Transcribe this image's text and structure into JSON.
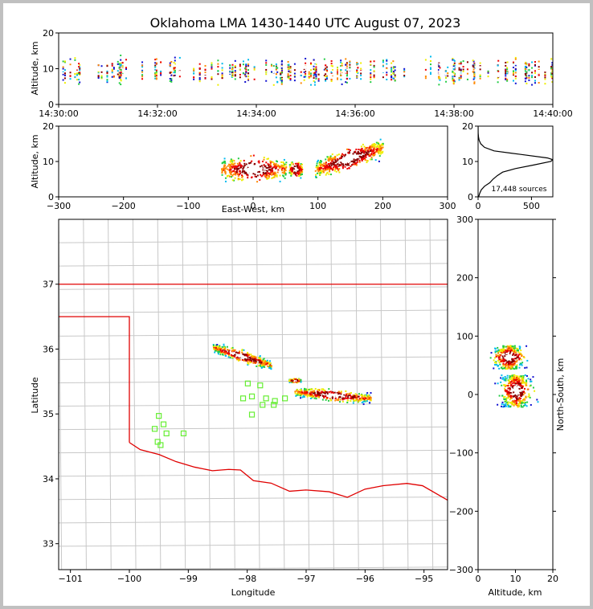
{
  "title": "Oklahoma LMA 1430-1440 UTC August 07, 2023",
  "colors": {
    "background": "#ffffff",
    "frame": "#c0c0c0",
    "state_line": "#e00000",
    "county_line": "#c8c8c8",
    "station_marker": "#66ee33",
    "gradient": [
      "#1010d0",
      "#00bbee",
      "#22cc44",
      "#eeee00",
      "#ff8800",
      "#ee0000",
      "#880000",
      "#ffffff"
    ]
  },
  "chart_data": [
    {
      "id": "time_height",
      "type": "scatter",
      "xlabel": "",
      "ylabel": "Altitude, km",
      "ylim": [
        0,
        20
      ],
      "yticks": [
        0,
        10,
        20
      ],
      "xticks": [
        "14:30:00",
        "14:32:00",
        "14:34:00",
        "14:36:00",
        "14:38:00",
        "14:40:00"
      ],
      "x_range_minutes": [
        0,
        10
      ],
      "description_of_points": "vertical streaks of VHF sources at altitude 2-16 km throughout 14:30-14:40"
    },
    {
      "id": "east_west_height",
      "type": "scatter",
      "xlabel": "East-West, km",
      "ylabel": "Altitude, km",
      "xlim": [
        -300,
        300
      ],
      "ylim": [
        0,
        20
      ],
      "xticks": [
        -300,
        -200,
        -100,
        0,
        100,
        200,
        300
      ],
      "yticks": [
        0,
        10,
        20
      ],
      "clusters": [
        {
          "x": [
            -50,
            50
          ],
          "y": [
            2,
            14
          ]
        },
        {
          "x": [
            55,
            75
          ],
          "y": [
            4,
            12
          ]
        },
        {
          "x": [
            95,
            200
          ],
          "y": [
            6,
            16
          ]
        }
      ]
    },
    {
      "id": "altitude_histogram",
      "type": "line",
      "xlim": [
        0,
        700
      ],
      "ylim": [
        0,
        20
      ],
      "xticks": [
        0,
        500
      ],
      "yticks": [
        0,
        10,
        20
      ],
      "annotation": "17,448 sources",
      "altitude_km": [
        0,
        1,
        2,
        3,
        4,
        5,
        6,
        7,
        8,
        9,
        10,
        10.5,
        11,
        12,
        13,
        14,
        15,
        16,
        17,
        18,
        20
      ],
      "count": [
        5,
        15,
        30,
        60,
        110,
        140,
        180,
        230,
        350,
        520,
        680,
        700,
        650,
        400,
        150,
        60,
        25,
        10,
        4,
        1,
        0
      ]
    },
    {
      "id": "plan_view_map",
      "type": "scatter",
      "xlabel": "Longitude",
      "ylabel": "Latitude",
      "xlim": [
        -101.2,
        -94.6
      ],
      "ylim": [
        32.6,
        38.0
      ],
      "xticks": [
        -101,
        -100,
        -99,
        -98,
        -97,
        -96,
        -95
      ],
      "yticks": [
        33,
        34,
        35,
        36,
        37
      ],
      "stations": [
        [
          -99.5,
          34.97
        ],
        [
          -99.57,
          34.77
        ],
        [
          -99.42,
          34.84
        ],
        [
          -99.52,
          34.57
        ],
        [
          -99.47,
          34.52
        ],
        [
          -99.37,
          34.7
        ],
        [
          -99.08,
          34.7
        ],
        [
          -97.99,
          35.47
        ],
        [
          -97.78,
          35.44
        ],
        [
          -98.07,
          35.24
        ],
        [
          -97.92,
          35.27
        ],
        [
          -97.68,
          35.24
        ],
        [
          -97.53,
          35.2
        ],
        [
          -97.36,
          35.24
        ],
        [
          -97.74,
          35.14
        ],
        [
          -97.55,
          35.14
        ],
        [
          -97.92,
          34.99
        ]
      ],
      "source_regions": [
        {
          "lon": [
            -98.6,
            -97.6
          ],
          "lat": [
            35.7,
            36.1
          ]
        },
        {
          "lon": [
            -97.3,
            -97.1
          ],
          "lat": [
            35.45,
            35.6
          ]
        },
        {
          "lon": [
            -97.2,
            -95.9
          ],
          "lat": [
            35.1,
            35.5
          ]
        }
      ]
    },
    {
      "id": "north_south_height",
      "type": "scatter",
      "xlabel": "Altitude, km",
      "ylabel": "North-South, km",
      "xlim": [
        0,
        20
      ],
      "ylim": [
        -300,
        300
      ],
      "xticks": [
        0,
        10,
        20
      ],
      "yticks": [
        -300,
        -200,
        -100,
        0,
        100,
        200,
        300
      ],
      "clusters": [
        {
          "alt": [
            1,
            15
          ],
          "ns": [
            45,
            85
          ]
        },
        {
          "alt": [
            3,
            17
          ],
          "ns": [
            -20,
            35
          ]
        }
      ]
    }
  ]
}
